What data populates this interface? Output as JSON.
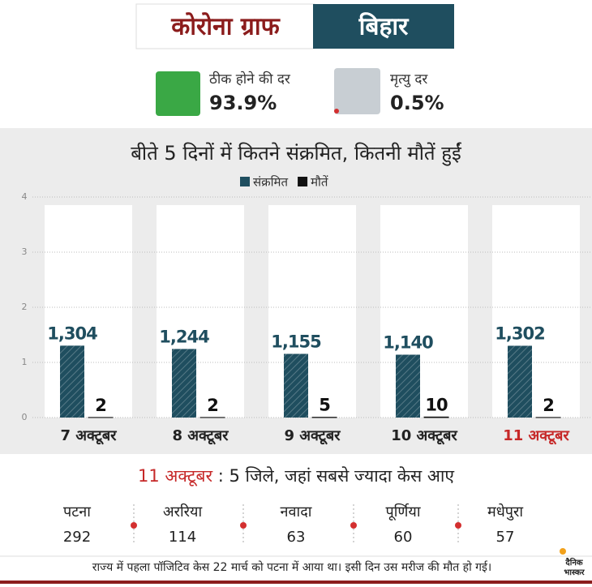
{
  "header": {
    "title": "कोरोना ग्राफ",
    "state": "बिहार"
  },
  "stats": [
    {
      "label": "ठीक होने की दर",
      "value": "93.9%",
      "color": "#3aa845"
    },
    {
      "label": "मृत्यु दर",
      "value": "0.5%",
      "color": "#c8ced3"
    }
  ],
  "chart_data": {
    "type": "bar",
    "title": "बीते 5 दिनों में कितने संक्रमित, कितनी मौतें हुईं",
    "categories": [
      "7 अक्टूबर",
      "8 अक्टूबर",
      "9 अक्टूबर",
      "10 अक्टूबर",
      "11 अक्टूबर"
    ],
    "category_label_colors": [
      "#222222",
      "#222222",
      "#222222",
      "#222222",
      "#c62828"
    ],
    "series": [
      {
        "name": "संक्रमित",
        "color": "#1f4e5f",
        "values": [
          1304,
          1244,
          1155,
          1140,
          1302
        ],
        "value_labels": [
          "1,304",
          "1,244",
          "1,155",
          "1,140",
          "1,302"
        ]
      },
      {
        "name": "मौतें",
        "color": "#111111",
        "values": [
          2,
          2,
          5,
          10,
          2
        ]
      }
    ],
    "ylim": [
      0,
      4000
    ],
    "yticks": [
      {
        "value": 0,
        "label": "0"
      },
      {
        "value": 1000,
        "label": "1"
      },
      {
        "value": 2000,
        "label": "2"
      },
      {
        "value": 3000,
        "label": "3"
      },
      {
        "value": 4000,
        "label": "4"
      }
    ],
    "grid": true
  },
  "subheading": {
    "date": "11 अक्टूबर",
    "text": " : 5 जिले, जहां सबसे ज्यादा केस आए"
  },
  "districts": [
    {
      "name": "पटना",
      "cases": "292"
    },
    {
      "name": "अररिया",
      "cases": "114"
    },
    {
      "name": "नवादा",
      "cases": "63"
    },
    {
      "name": "पूर्णिया",
      "cases": "60"
    },
    {
      "name": "मधेपुरा",
      "cases": "57"
    }
  ],
  "footer": "राज्य में पहला पॉजिटिव केस 22 मार्च को पटना में आया था। इसी दिन उस मरीज की मौत हो गई।",
  "logo": [
    "दैनिक",
    "भास्कर"
  ]
}
